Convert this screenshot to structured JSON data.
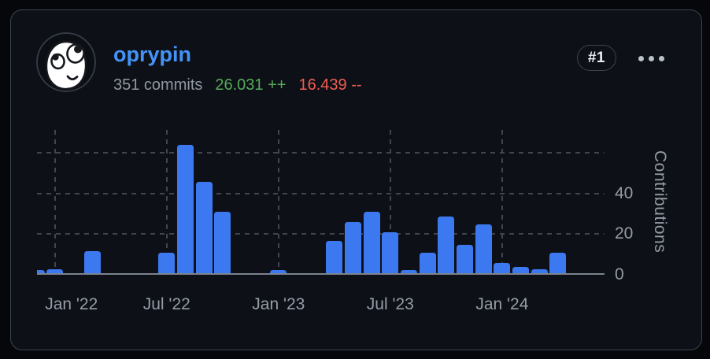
{
  "header": {
    "username": "oprypin",
    "commits": "351 commits",
    "additions": "26.031 ++",
    "deletions": "16.439 --",
    "rank_badge": "#1"
  },
  "colors": {
    "username": "#4493f8",
    "additions": "#57ab5a",
    "deletions": "#f25d52",
    "bar": "#3c78f0",
    "grid": "#3f464f",
    "axis_text": "#959ca6",
    "card_bg": "#0d1117",
    "card_border": "#3d444d"
  },
  "chart_data": {
    "type": "bar",
    "title": "",
    "xlabel": "",
    "ylabel": "Contributions",
    "ylim": [
      0,
      72
    ],
    "grid": "dashed",
    "y_axis_position": "right",
    "categories": [
      "Dec 2021",
      "Jan 2022",
      "Feb 2022",
      "Mar 2022",
      "Apr 2022",
      "May 2022",
      "Jun 2022",
      "Jul 2022",
      "Aug 2022",
      "Sep 2022",
      "Oct 2022",
      "Nov 2022",
      "Dec 2022",
      "Jan 2023",
      "Feb 2023",
      "Mar 2023",
      "Apr 2023",
      "May 2023",
      "Jun 2023",
      "Jul 2023",
      "Aug 2023",
      "Sep 2023",
      "Oct 2023",
      "Nov 2023",
      "Dec 2023",
      "Jan 2024",
      "Feb 2024",
      "Mar 2024",
      "Apr 2024"
    ],
    "values": [
      1,
      2,
      0,
      11,
      0,
      0,
      0,
      10,
      63,
      45,
      30,
      0,
      0,
      1,
      0,
      0,
      16,
      25,
      30,
      20,
      1,
      10,
      28,
      14,
      24,
      5,
      3,
      2,
      10
    ],
    "x_ticks": [
      {
        "index": 1,
        "label": "Jan '22"
      },
      {
        "index": 7,
        "label": "Jul '22"
      },
      {
        "index": 13,
        "label": "Jan '23"
      },
      {
        "index": 19,
        "label": "Jul '23"
      },
      {
        "index": 25,
        "label": "Jan '24"
      }
    ],
    "y_gridlines": [
      20,
      40,
      60
    ],
    "y_tick_labels": [
      {
        "value": 0,
        "label": "0"
      },
      {
        "value": 20,
        "label": "20"
      },
      {
        "value": 40,
        "label": "40"
      }
    ]
  }
}
